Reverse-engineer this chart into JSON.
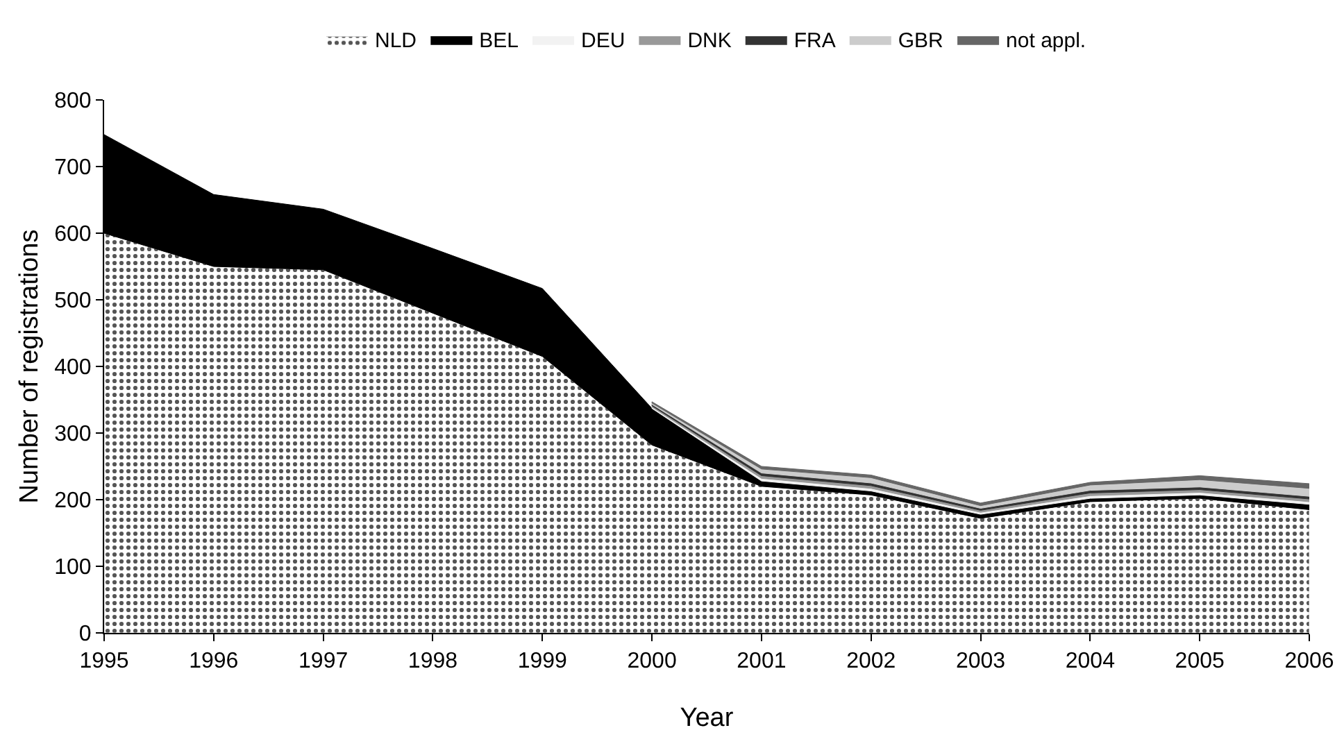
{
  "chart_data": {
    "type": "area",
    "stacked": true,
    "xlabel": "Year",
    "ylabel": "Number of registrations",
    "x": [
      1995,
      1996,
      1997,
      1998,
      1999,
      2000,
      2001,
      2002,
      2003,
      2004,
      2005,
      2006
    ],
    "series": [
      {
        "name": "NLD",
        "color": "#c8c8c8",
        "values": [
          600,
          550,
          545,
          480,
          415,
          282,
          220,
          207,
          172,
          197,
          202,
          185
        ]
      },
      {
        "name": "BEL",
        "color": "#000000",
        "values": [
          148,
          108,
          91,
          97,
          102,
          55,
          8,
          6,
          6,
          5,
          5,
          8
        ]
      },
      {
        "name": "DEU",
        "color": "#f2f2f2",
        "values": [
          null,
          null,
          null,
          null,
          null,
          2,
          4,
          4,
          3,
          4,
          4,
          4
        ]
      },
      {
        "name": "DNK",
        "color": "#999999",
        "values": [
          null,
          null,
          null,
          null,
          null,
          2,
          4,
          4,
          3,
          4,
          4,
          4
        ]
      },
      {
        "name": "FRA",
        "color": "#333333",
        "values": [
          null,
          null,
          null,
          null,
          null,
          2,
          4,
          4,
          3,
          4,
          4,
          4
        ]
      },
      {
        "name": "GBR",
        "color": "#cccccc",
        "values": [
          null,
          null,
          null,
          null,
          null,
          2,
          6,
          8,
          4,
          8,
          11,
          12
        ]
      },
      {
        "name": "not appl.",
        "color": "#666666",
        "values": [
          null,
          null,
          null,
          null,
          null,
          2,
          4,
          4,
          4,
          4,
          6,
          7
        ]
      }
    ],
    "xlim": [
      1995,
      2006
    ],
    "xticks": [
      1995,
      1996,
      1997,
      1998,
      1999,
      2000,
      2001,
      2002,
      2003,
      2004,
      2005,
      2006
    ],
    "ylim": [
      0,
      800
    ],
    "yticks": [
      0,
      100,
      200,
      300,
      400,
      500,
      600,
      700,
      800
    ],
    "grid": false,
    "legend": "top"
  }
}
